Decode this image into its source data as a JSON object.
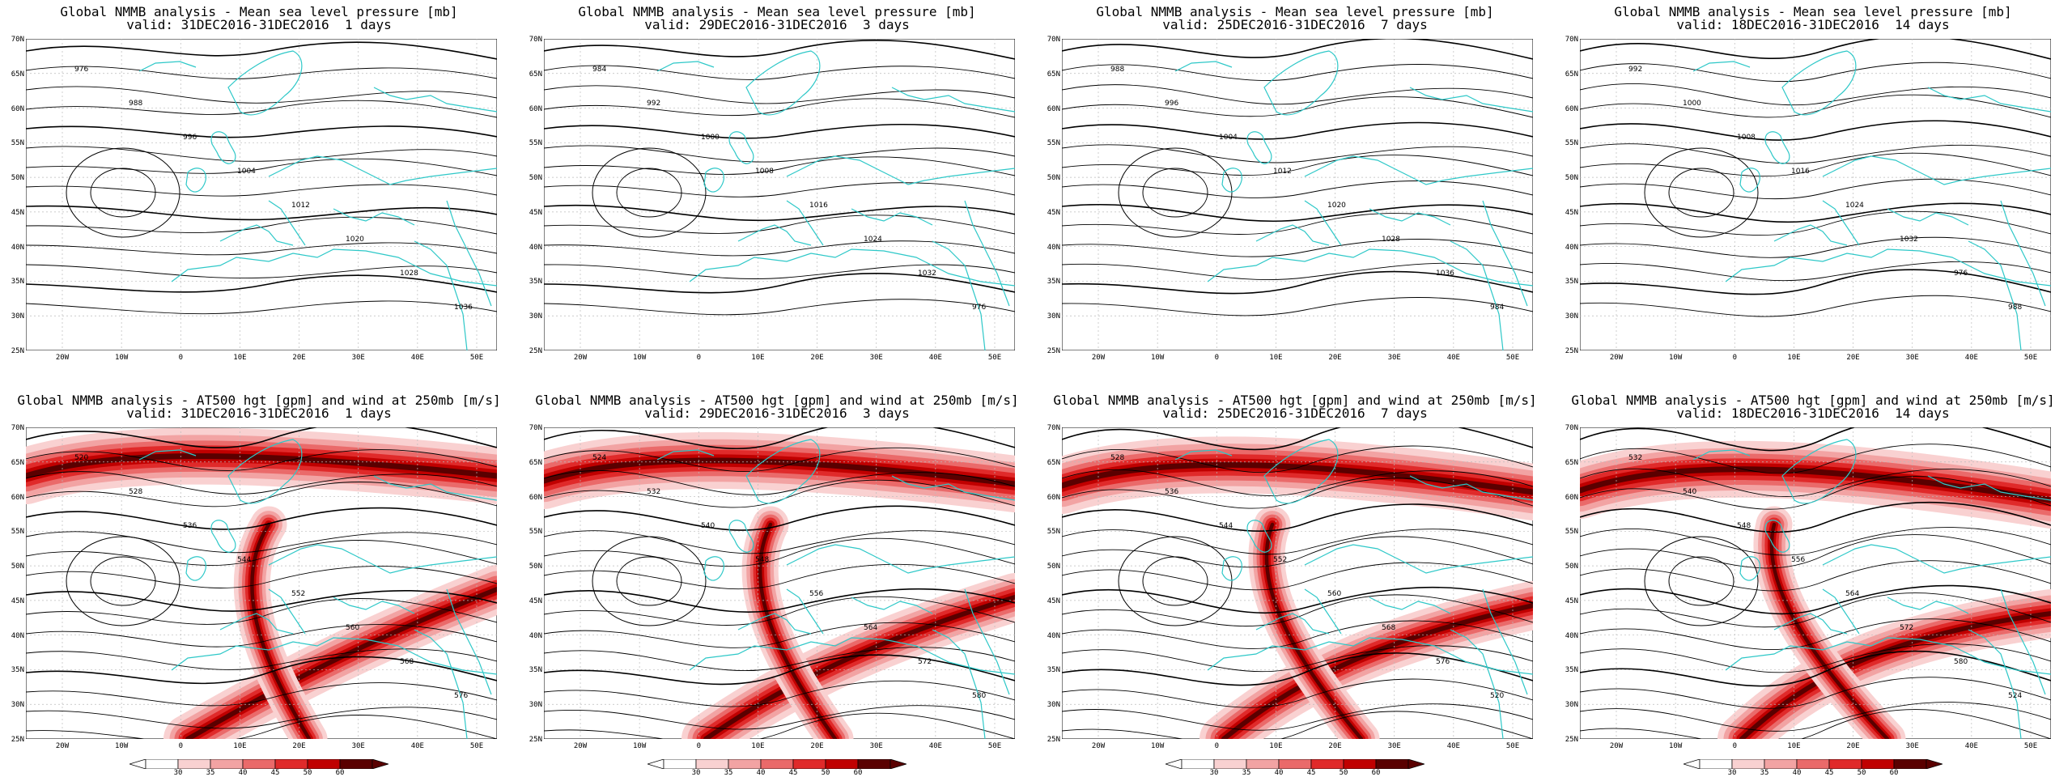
{
  "panels": [
    {
      "title1": "Global NMMB analysis - Mean sea level pressure [mb]",
      "title2": "valid: 31DEC2016-31DEC2016  1 days",
      "kind": "mslp"
    },
    {
      "title1": "Global NMMB analysis - Mean sea level pressure [mb]",
      "title2": "valid: 29DEC2016-31DEC2016  3 days",
      "kind": "mslp"
    },
    {
      "title1": "Global NMMB analysis - Mean sea level pressure [mb]",
      "title2": "valid: 25DEC2016-31DEC2016  7 days",
      "kind": "mslp"
    },
    {
      "title1": "Global NMMB analysis - Mean sea level pressure [mb]",
      "title2": "valid: 18DEC2016-31DEC2016  14 days",
      "kind": "mslp"
    },
    {
      "title1": "Global NMMB analysis - AT500 hgt [gpm] and wind at 250mb [m/s]",
      "title2": "valid: 31DEC2016-31DEC2016  1 days",
      "kind": "z500"
    },
    {
      "title1": "Global NMMB analysis - AT500 hgt [gpm] and wind at 250mb [m/s]",
      "title2": "valid: 29DEC2016-31DEC2016  3 days",
      "kind": "z500"
    },
    {
      "title1": "Global NMMB analysis - AT500 hgt [gpm] and wind at 250mb [m/s]",
      "title2": "valid: 25DEC2016-31DEC2016  7 days",
      "kind": "z500"
    },
    {
      "title1": "Global NMMB analysis - AT500 hgt [gpm] and wind at 250mb [m/s]",
      "title2": "valid: 18DEC2016-31DEC2016  14 days",
      "kind": "z500"
    }
  ],
  "lat_labels": [
    "70N",
    "65N",
    "60N",
    "55N",
    "50N",
    "45N",
    "40N",
    "35N",
    "30N",
    "25N"
  ],
  "lon_labels": [
    "20W",
    "10W",
    "0",
    "10E",
    "20E",
    "30E",
    "40E",
    "50E"
  ],
  "colorbar_ticks": [
    "30",
    "35",
    "40",
    "45",
    "50",
    "60"
  ],
  "mslp_labels": [
    "976",
    "984",
    "988",
    "992",
    "996",
    "1000",
    "1004",
    "1008",
    "1012",
    "1016",
    "1020",
    "1024",
    "1028",
    "1032",
    "1036"
  ],
  "z500_labels": [
    "520",
    "524",
    "528",
    "532",
    "536",
    "540",
    "544",
    "548",
    "552",
    "556",
    "560",
    "564",
    "568",
    "572",
    "576",
    "580"
  ],
  "colors": {
    "coast": "#2ec8c8",
    "contour": "#000000",
    "grid": "#bbbbbb",
    "wind": [
      "#f9d1d1",
      "#f2a3a3",
      "#ea6a6a",
      "#e02a2a",
      "#c00000",
      "#5a0000"
    ]
  }
}
